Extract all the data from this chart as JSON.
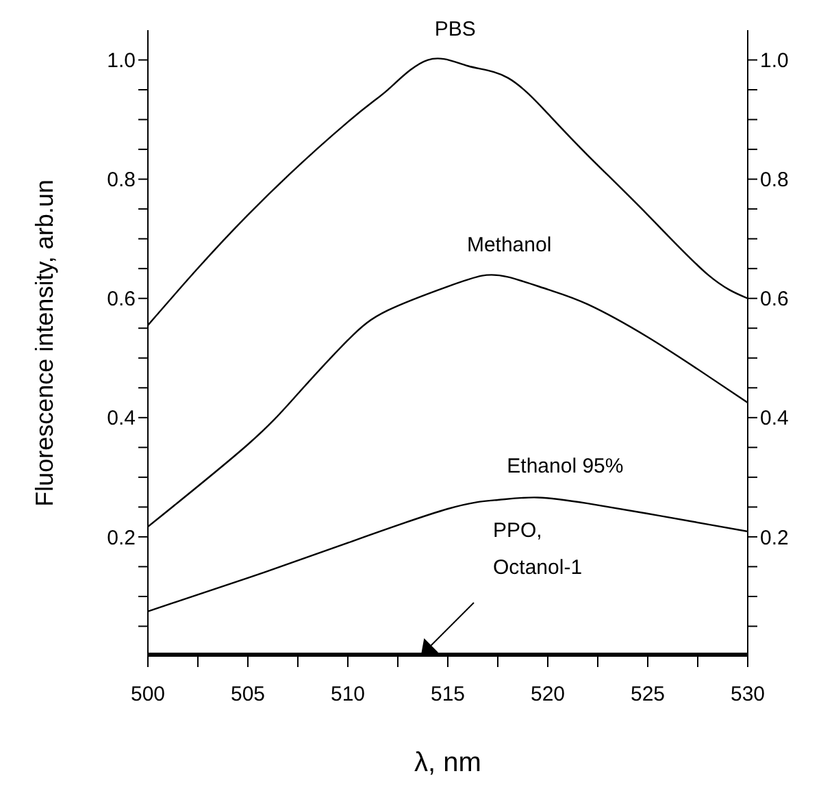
{
  "chart_data": {
    "type": "line",
    "xlabel": "λ, nm",
    "ylabel": "Fluorescence intensity, arb.un",
    "xlim": [
      500,
      530
    ],
    "xticks": [
      500,
      {
        "value": 502.5,
        "label": null
      },
      505,
      {
        "value": 507.5,
        "label": null
      },
      510,
      {
        "value": 512.5,
        "label": null
      },
      515,
      {
        "value": 517.5,
        "label": null
      },
      520,
      {
        "value": 522.5,
        "label": null
      },
      525,
      {
        "value": 527.5,
        "label": null
      },
      530
    ],
    "ylim": [
      0,
      1.05
    ],
    "yticks": [
      {
        "value": 0.05,
        "label": null
      },
      {
        "value": 0.1,
        "label": null
      },
      {
        "value": 0.15,
        "label": null
      },
      0.2,
      {
        "value": 0.25,
        "label": null
      },
      {
        "value": 0.3,
        "label": null
      },
      {
        "value": 0.35,
        "label": null
      },
      0.4,
      {
        "value": 0.45,
        "label": null
      },
      {
        "value": 0.5,
        "label": null
      },
      {
        "value": 0.55,
        "label": null
      },
      0.6,
      {
        "value": 0.65,
        "label": null
      },
      {
        "value": 0.7,
        "label": null
      },
      {
        "value": 0.75,
        "label": null
      },
      0.8,
      {
        "value": 0.85,
        "label": null
      },
      {
        "value": 0.9,
        "label": null
      },
      {
        "value": 0.95,
        "label": null
      },
      {
        "value": 1.0,
        "label": "1.0"
      }
    ],
    "y2lim": [
      0,
      1.05
    ],
    "y2ticks": [
      {
        "value": 0.05,
        "label": null
      },
      {
        "value": 0.1,
        "label": null
      },
      {
        "value": 0.15,
        "label": null
      },
      0.2,
      {
        "value": 0.25,
        "label": null
      },
      {
        "value": 0.3,
        "label": null
      },
      {
        "value": 0.35,
        "label": null
      },
      0.4,
      {
        "value": 0.45,
        "label": null
      },
      {
        "value": 0.5,
        "label": null
      },
      {
        "value": 0.55,
        "label": null
      },
      0.6,
      {
        "value": 0.65,
        "label": null
      },
      {
        "value": 0.7,
        "label": null
      },
      {
        "value": 0.75,
        "label": null
      },
      0.8,
      {
        "value": 0.85,
        "label": null
      },
      {
        "value": 0.9,
        "label": null
      },
      {
        "value": 0.95,
        "label": null
      },
      {
        "value": 1.0,
        "label": "1.0"
      }
    ],
    "marker": "none",
    "line_style": "solid",
    "series": [
      {
        "name": "PBS",
        "color": "#000000",
        "x": [
          500,
          505,
          510,
          512,
          514,
          516,
          518,
          520,
          522,
          525,
          528,
          530
        ],
        "values": [
          0.555,
          0.74,
          0.896,
          0.95,
          1.0,
          0.99,
          0.97,
          0.91,
          0.84,
          0.74,
          0.64,
          0.6
        ]
      },
      {
        "name": "Methanol",
        "color": "#000000",
        "x": [
          500,
          505,
          507.5,
          510,
          512,
          515,
          516.7,
          518,
          520,
          522,
          525,
          528,
          530
        ],
        "values": [
          0.217,
          0.355,
          0.44,
          0.53,
          0.58,
          0.62,
          0.638,
          0.636,
          0.615,
          0.59,
          0.535,
          0.47,
          0.425
        ]
      },
      {
        "name": "Ethanol 95%",
        "color": "#000000",
        "x": [
          500,
          505,
          510,
          515,
          517.5,
          519.5,
          522,
          525,
          528,
          530
        ],
        "values": [
          0.075,
          0.131,
          0.19,
          0.247,
          0.262,
          0.266,
          0.256,
          0.239,
          0.221,
          0.209
        ]
      },
      {
        "color": "#000000",
        "x": [
          500,
          530
        ],
        "values": [
          0,
          0
        ]
      }
    ],
    "annotations": [
      "PPO, Octanol-1"
    ]
  }
}
